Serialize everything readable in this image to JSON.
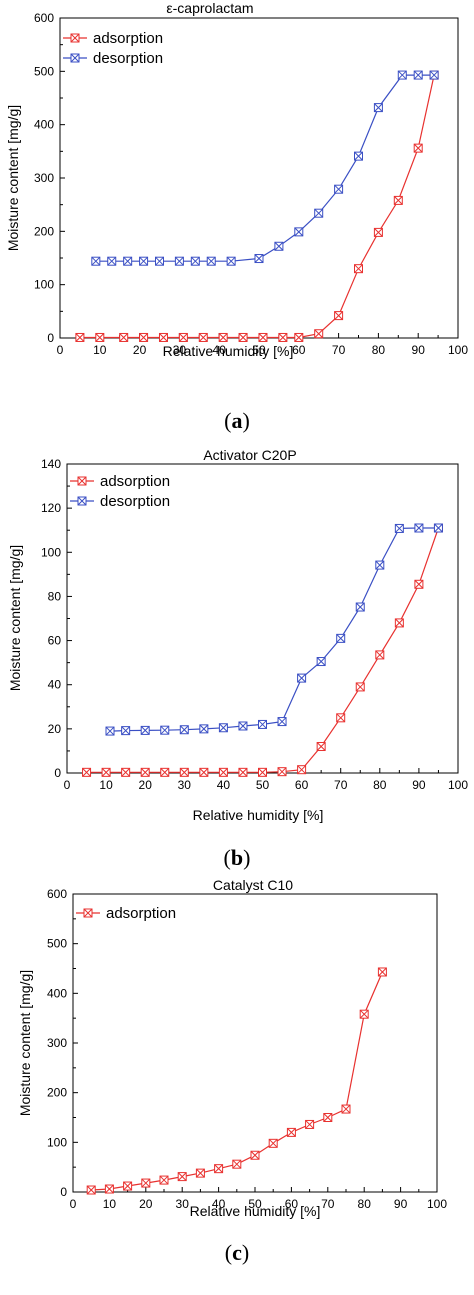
{
  "chart_data": [
    {
      "type": "line",
      "title": "ε-caprolactam",
      "xlabel": "Relative humidity [%]",
      "ylabel": "Moisture content [mg/g]",
      "xlim": [
        0,
        100
      ],
      "ylim": [
        0,
        600
      ],
      "xticks": [
        0,
        10,
        20,
        30,
        40,
        50,
        60,
        70,
        80,
        90,
        100
      ],
      "yticks": [
        0,
        100,
        200,
        300,
        400,
        500,
        600
      ],
      "legend_position": "top-left",
      "grid": false,
      "caption_letter": "a",
      "series": [
        {
          "name": "adsorption",
          "color": "#e8312f",
          "x": [
            5,
            10,
            16,
            21,
            26,
            31,
            36,
            41,
            46,
            51,
            56,
            60,
            65,
            70,
            75,
            80,
            85,
            90,
            94
          ],
          "y": [
            1,
            1,
            1,
            1,
            1,
            1,
            1,
            1,
            1,
            1,
            1,
            1,
            8,
            42,
            130,
            198,
            258,
            356,
            493
          ]
        },
        {
          "name": "desorption",
          "color": "#3a4fc4",
          "x": [
            9,
            13,
            17,
            21,
            25,
            30,
            34,
            38,
            43,
            50,
            55,
            60,
            65,
            70,
            75,
            80,
            86,
            90,
            94
          ],
          "y": [
            144,
            144,
            144,
            144,
            144,
            144,
            144,
            144,
            144,
            149,
            172,
            199,
            234,
            279,
            341,
            432,
            493,
            493,
            493
          ]
        }
      ]
    },
    {
      "type": "line",
      "title": "Activator C20P",
      "xlabel": "Relative humidity [%]",
      "ylabel": "Moisture content [mg/g]",
      "xlim": [
        0,
        100
      ],
      "ylim": [
        0,
        140
      ],
      "xticks": [
        0,
        10,
        20,
        30,
        40,
        50,
        60,
        70,
        80,
        90,
        100
      ],
      "yticks": [
        0,
        20,
        40,
        60,
        80,
        100,
        120,
        140
      ],
      "legend_position": "top-left",
      "grid": false,
      "caption_letter": "b",
      "series": [
        {
          "name": "adsorption",
          "color": "#e8312f",
          "x": [
            5,
            10,
            15,
            20,
            25,
            30,
            35,
            40,
            45,
            50,
            55,
            60,
            65,
            70,
            75,
            80,
            85,
            90,
            95
          ],
          "y": [
            0.3,
            0.3,
            0.3,
            0.3,
            0.3,
            0.3,
            0.3,
            0.3,
            0.3,
            0.3,
            0.6,
            1.5,
            12,
            25,
            39,
            53.5,
            68,
            85.5,
            111
          ]
        },
        {
          "name": "desorption",
          "color": "#3a4fc4",
          "x": [
            11,
            15,
            20,
            25,
            30,
            35,
            40,
            45,
            50,
            55,
            60,
            65,
            70,
            75,
            80,
            85,
            90,
            95
          ],
          "y": [
            19,
            19.2,
            19.3,
            19.4,
            19.6,
            20,
            20.5,
            21.3,
            22,
            23.3,
            43,
            50.5,
            61,
            75.2,
            94.2,
            110.8,
            111,
            111
          ]
        }
      ]
    },
    {
      "type": "line",
      "title": "Catalyst C10",
      "xlabel": "Relative humidity [%]",
      "ylabel": "Moisture content [mg/g]",
      "xlim": [
        0,
        100
      ],
      "ylim": [
        0,
        600
      ],
      "xticks": [
        0,
        10,
        20,
        30,
        40,
        50,
        60,
        70,
        80,
        90,
        100
      ],
      "yticks": [
        0,
        100,
        200,
        300,
        400,
        500,
        600
      ],
      "legend_position": "top-left",
      "grid": false,
      "caption_letter": "c",
      "series": [
        {
          "name": "adsorption",
          "color": "#e8312f",
          "x": [
            5,
            10,
            15,
            20,
            25,
            30,
            35,
            40,
            45,
            50,
            55,
            60,
            65,
            70,
            75,
            80,
            85
          ],
          "y": [
            4,
            6,
            12,
            18,
            24,
            31,
            38,
            47,
            56,
            74,
            98,
            120,
            136,
            150,
            167,
            358,
            443
          ]
        }
      ]
    }
  ]
}
